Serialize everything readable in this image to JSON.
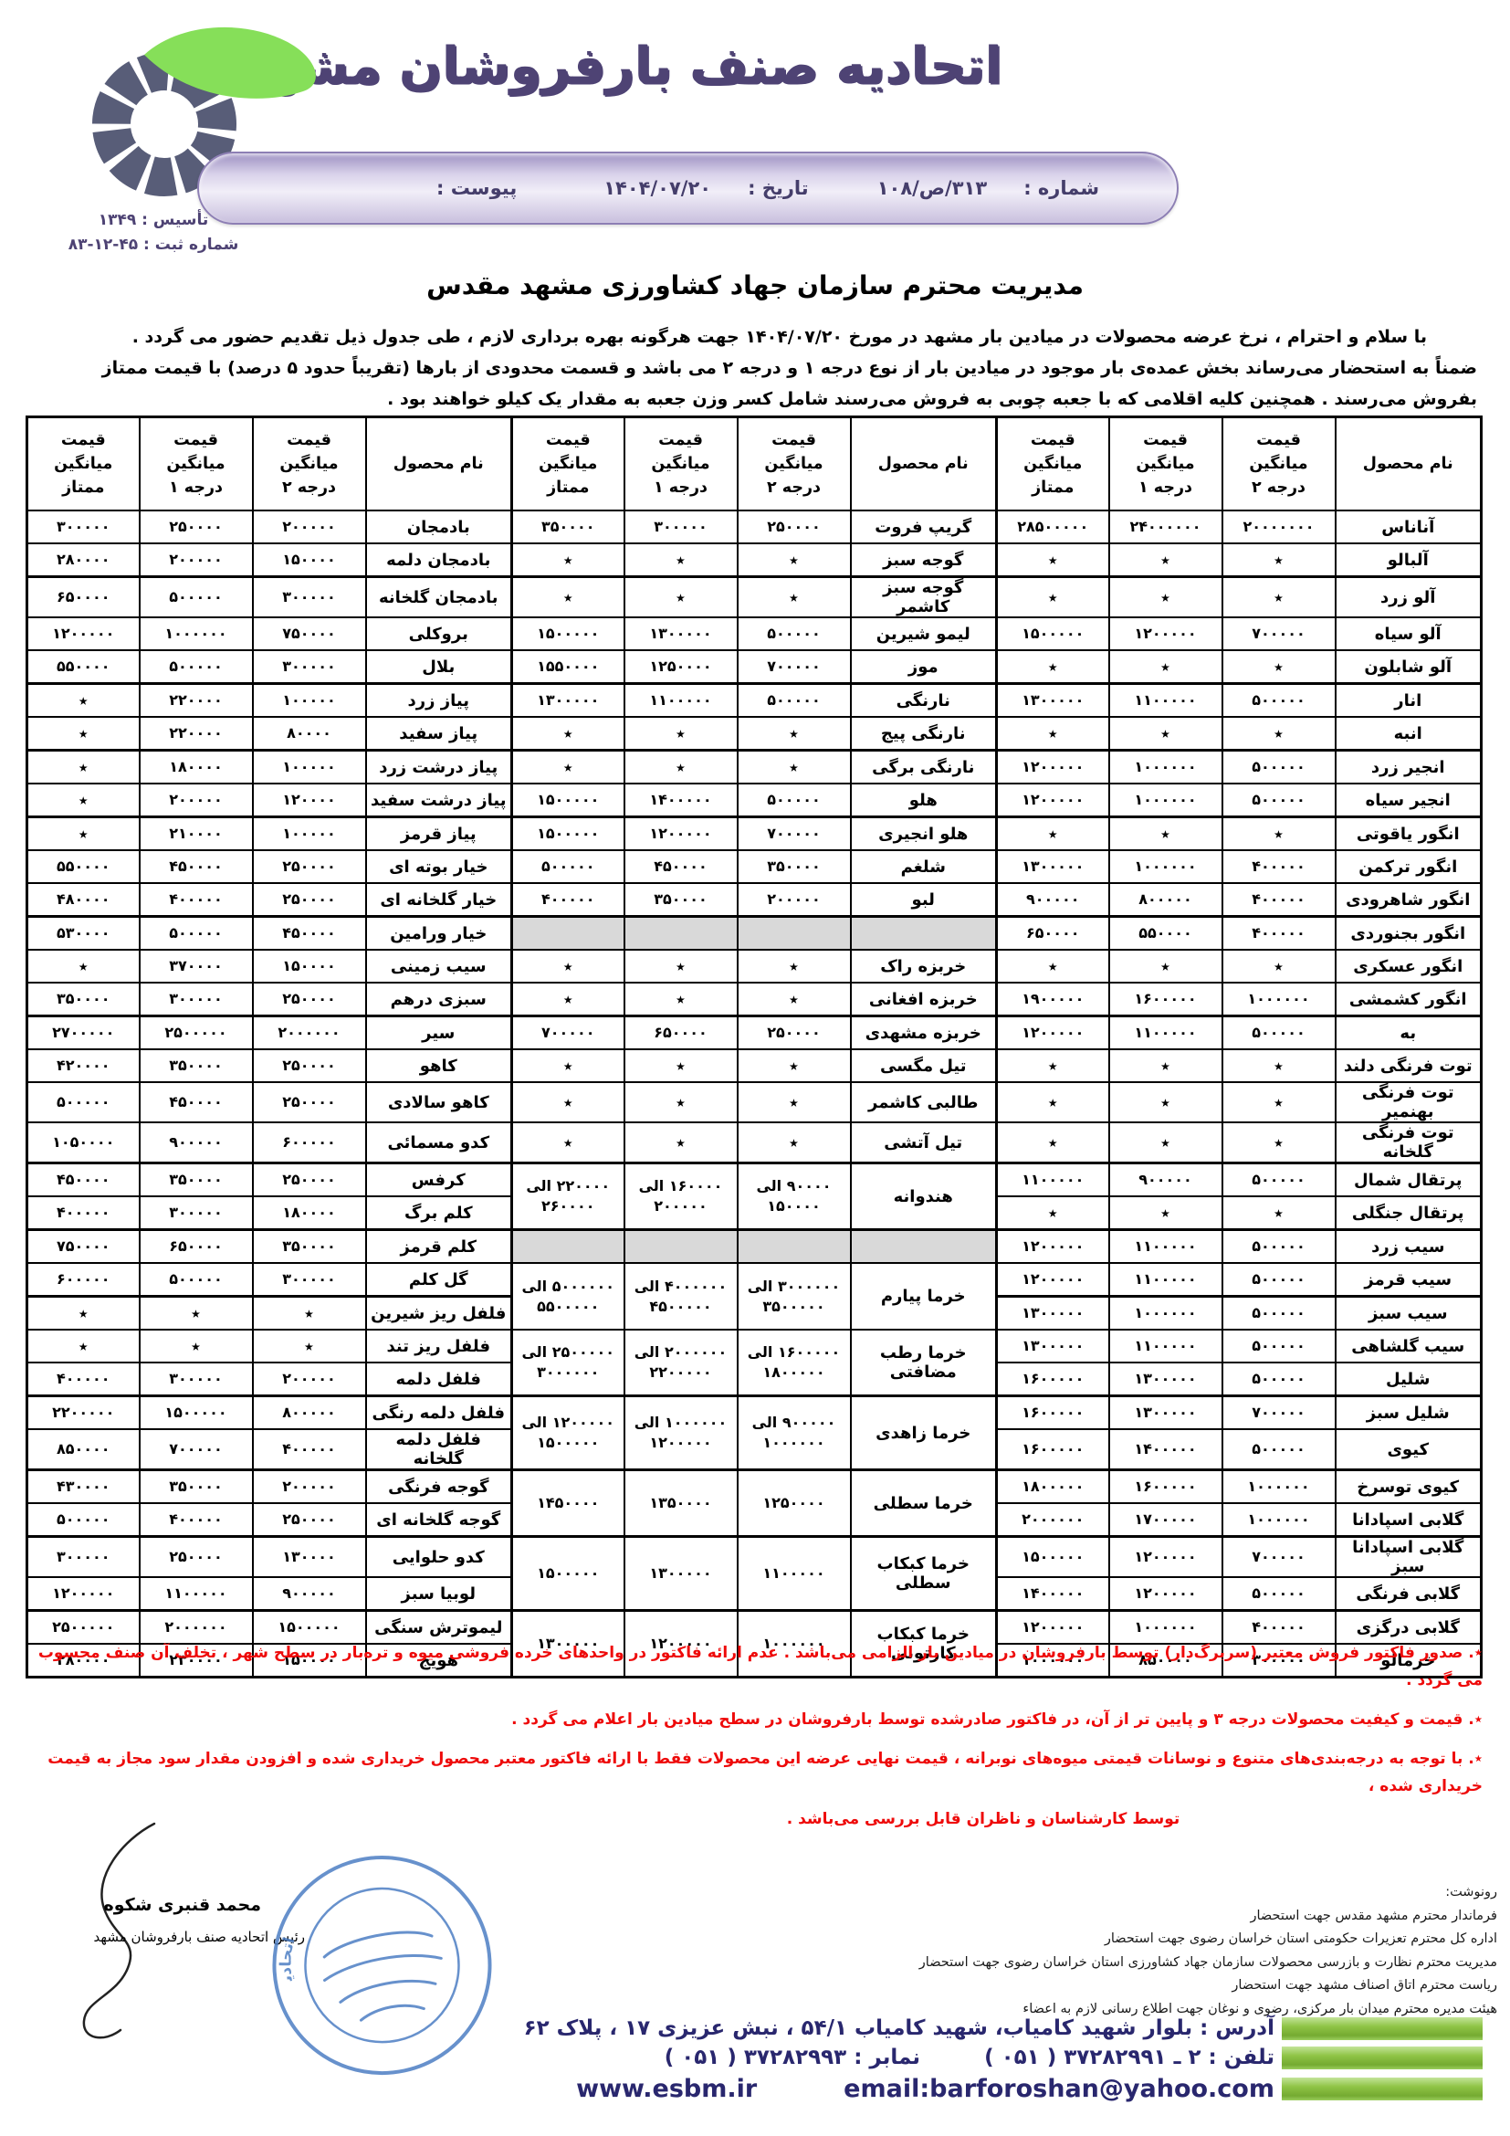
{
  "letterhead": {
    "union_title": "اتحادیه صنف بارفروشان مشهد",
    "established": "تأسیس : ۱۳۴۹",
    "registration": "شماره ثبت : ۴۵-۱۲-۸۳",
    "logo_icon": "segmented-fruit-with-green-leaf",
    "number_label": "شماره :",
    "number_value": "۳۱۳/ص/۱۰۸",
    "date_label": "تاریخ :",
    "date_value": "۱۴۰۴/۰۷/۲۰",
    "attachment_label": "پیوست :",
    "attachment_value": ""
  },
  "letter": {
    "recipient": "مدیریت محترم سازمان جهاد کشاورزی مشهد مقدس",
    "body_line1": "با سلام و احترام ، نرخ عرضه محصولات در میادین بار مشهد در مورخ  ۱۴۰۴/۰۷/۲۰ جهت هرگونه بهره برداری لازم ، طی جدول ذیل تقدیم حضور می گردد .",
    "body_line2": "ضمناً به استحضار می‌رساند بخش عمده‌ی بار موجود در میادین بار از نوع درجه ۱ و درجه ۲ می باشد و قسمت محدودی از بارها  (تقریباً حدود ۵ درصد) با قیمت ممتاز",
    "body_line3": "بفروش می‌رسند . همچنین کلیه اقلامی که با جعبه چوبی به فروش می‌رسند شامل کسر وزن جعبه به مقدار یک کیلو خواهند بود ."
  },
  "table": {
    "no_price_symbol": "٭",
    "column_headers": {
      "product": "نام محصول",
      "line1": "قیمت",
      "line2": "میانگین",
      "grade2": "درجه ۲",
      "grade1": "درجه ۱",
      "premium": "ممتاز"
    },
    "right_group_rows": [
      [
        "آناناس",
        "۲۰۰۰۰۰۰۰",
        "۲۴۰۰۰۰۰۰",
        "۲۸۵۰۰۰۰۰"
      ],
      [
        "آلبالو",
        "٭",
        "٭",
        "٭"
      ],
      [
        "آلو زرد",
        "٭",
        "٭",
        "٭"
      ],
      [
        "آلو سیاه",
        "۷۰۰۰۰۰",
        "۱۲۰۰۰۰۰",
        "۱۵۰۰۰۰۰"
      ],
      [
        "آلو شابلون",
        "٭",
        "٭",
        "٭"
      ],
      [
        "انار",
        "۵۰۰۰۰۰",
        "۱۱۰۰۰۰۰",
        "۱۳۰۰۰۰۰"
      ],
      [
        "انبه",
        "٭",
        "٭",
        "٭"
      ],
      [
        "انجیر زرد",
        "۵۰۰۰۰۰",
        "۱۰۰۰۰۰۰",
        "۱۲۰۰۰۰۰"
      ],
      [
        "انجیر سیاه",
        "۵۰۰۰۰۰",
        "۱۰۰۰۰۰۰",
        "۱۲۰۰۰۰۰"
      ],
      [
        "انگور یاقوتی",
        "٭",
        "٭",
        "٭"
      ],
      [
        "انگور ترکمن",
        "۴۰۰۰۰۰",
        "۱۰۰۰۰۰۰",
        "۱۳۰۰۰۰۰"
      ],
      [
        "انگور شاهرودی",
        "۴۰۰۰۰۰",
        "۸۰۰۰۰۰",
        "۹۰۰۰۰۰"
      ],
      [
        "انگور بجنوردی",
        "۴۰۰۰۰۰",
        "۵۵۰۰۰۰",
        "۶۵۰۰۰۰"
      ],
      [
        "انگور عسکری",
        "٭",
        "٭",
        "٭"
      ],
      [
        "انگور کشمشی",
        "۱۰۰۰۰۰۰",
        "۱۶۰۰۰۰۰",
        "۱۹۰۰۰۰۰"
      ],
      [
        "به",
        "۵۰۰۰۰۰",
        "۱۱۰۰۰۰۰",
        "۱۲۰۰۰۰۰"
      ],
      [
        "توت فرنگی دلند",
        "٭",
        "٭",
        "٭"
      ],
      [
        "توت فرنگی بهنمیر",
        "٭",
        "٭",
        "٭"
      ],
      [
        "توت فرنگی گلخانه",
        "٭",
        "٭",
        "٭"
      ],
      [
        "پرتقال شمال",
        "۵۰۰۰۰۰",
        "۹۰۰۰۰۰",
        "۱۱۰۰۰۰۰"
      ],
      [
        "پرتقال جنگلی",
        "٭",
        "٭",
        "٭"
      ],
      [
        "سیب زرد",
        "۵۰۰۰۰۰",
        "۱۱۰۰۰۰۰",
        "۱۲۰۰۰۰۰"
      ],
      [
        "سیب قرمز",
        "۵۰۰۰۰۰",
        "۱۱۰۰۰۰۰",
        "۱۲۰۰۰۰۰"
      ],
      [
        "سیب سبز",
        "۵۰۰۰۰۰",
        "۱۰۰۰۰۰۰",
        "۱۳۰۰۰۰۰"
      ],
      [
        "سیب گلشاهی",
        "۵۰۰۰۰۰",
        "۱۱۰۰۰۰۰",
        "۱۳۰۰۰۰۰"
      ],
      [
        "شلیل",
        "۵۰۰۰۰۰",
        "۱۳۰۰۰۰۰",
        "۱۶۰۰۰۰۰"
      ],
      [
        "شلیل سبز",
        "۷۰۰۰۰۰",
        "۱۳۰۰۰۰۰",
        "۱۶۰۰۰۰۰"
      ],
      [
        "کیوی",
        "۵۰۰۰۰۰",
        "۱۴۰۰۰۰۰",
        "۱۶۰۰۰۰۰"
      ],
      [
        "کیوی توسرخ",
        "۱۰۰۰۰۰۰",
        "۱۶۰۰۰۰۰",
        "۱۸۰۰۰۰۰"
      ],
      [
        "گلابی اسپادانا",
        "۱۰۰۰۰۰۰",
        "۱۷۰۰۰۰۰",
        "۲۰۰۰۰۰۰"
      ],
      [
        "گلابی اسپادانا سبز",
        "۷۰۰۰۰۰",
        "۱۲۰۰۰۰۰",
        "۱۵۰۰۰۰۰"
      ],
      [
        "گلابی فرنگی",
        "۵۰۰۰۰۰",
        "۱۲۰۰۰۰۰",
        "۱۴۰۰۰۰۰"
      ],
      [
        "گلابی درگزی",
        "۴۰۰۰۰۰",
        "۱۰۰۰۰۰۰",
        "۱۲۰۰۰۰۰"
      ],
      [
        "خرمالو",
        "۳۰۰۰۰۰",
        "۸۵۰۰۰۰",
        "۱۰۰۰۰۰۰"
      ]
    ],
    "middle_group_rows": [
      {
        "type": "row",
        "span": 1,
        "name": "گریپ فروت",
        "grade2": "۲۵۰۰۰۰",
        "grade1": "۳۰۰۰۰۰",
        "premium": "۳۵۰۰۰۰"
      },
      {
        "type": "row",
        "span": 1,
        "name": "گوجه سبز",
        "grade2": "٭",
        "grade1": "٭",
        "premium": "٭"
      },
      {
        "type": "row",
        "span": 1,
        "name": "گوجه سبز کاشمر",
        "grade2": "٭",
        "grade1": "٭",
        "premium": "٭"
      },
      {
        "type": "row",
        "span": 1,
        "name": "لیمو شیرین",
        "grade2": "۵۰۰۰۰۰",
        "grade1": "۱۳۰۰۰۰۰",
        "premium": "۱۵۰۰۰۰۰"
      },
      {
        "type": "row",
        "span": 1,
        "name": "موز",
        "grade2": "۷۰۰۰۰۰",
        "grade1": "۱۲۵۰۰۰۰",
        "premium": "۱۵۵۰۰۰۰"
      },
      {
        "type": "row",
        "span": 1,
        "name": "نارنگی",
        "grade2": "۵۰۰۰۰۰",
        "grade1": "۱۱۰۰۰۰۰",
        "premium": "۱۳۰۰۰۰۰"
      },
      {
        "type": "row",
        "span": 1,
        "name": "نارنگی پیج",
        "grade2": "٭",
        "grade1": "٭",
        "premium": "٭"
      },
      {
        "type": "row",
        "span": 1,
        "name": "نارنگی برگی",
        "grade2": "٭",
        "grade1": "٭",
        "premium": "٭"
      },
      {
        "type": "row",
        "span": 1,
        "name": "هلو",
        "grade2": "۵۰۰۰۰۰",
        "grade1": "۱۴۰۰۰۰۰",
        "premium": "۱۵۰۰۰۰۰"
      },
      {
        "type": "row",
        "span": 1,
        "name": "هلو انجیری",
        "grade2": "۷۰۰۰۰۰",
        "grade1": "۱۲۰۰۰۰۰",
        "premium": "۱۵۰۰۰۰۰"
      },
      {
        "type": "row",
        "span": 1,
        "name": "شلغم",
        "grade2": "۳۵۰۰۰۰",
        "grade1": "۴۵۰۰۰۰",
        "premium": "۵۰۰۰۰۰"
      },
      {
        "type": "row",
        "span": 1,
        "name": "لبو",
        "grade2": "۲۰۰۰۰۰",
        "grade1": "۳۵۰۰۰۰",
        "premium": "۴۰۰۰۰۰"
      },
      {
        "type": "gray",
        "span": 1,
        "name": "",
        "grade2": "",
        "grade1": "",
        "premium": ""
      },
      {
        "type": "row",
        "span": 1,
        "name": "خربزه راک",
        "grade2": "٭",
        "grade1": "٭",
        "premium": "٭"
      },
      {
        "type": "row",
        "span": 1,
        "name": "خربزه افغانی",
        "grade2": "٭",
        "grade1": "٭",
        "premium": "٭"
      },
      {
        "type": "row",
        "span": 1,
        "name": "خربزه مشهدی",
        "grade2": "۲۵۰۰۰۰",
        "grade1": "۶۵۰۰۰۰",
        "premium": "۷۰۰۰۰۰"
      },
      {
        "type": "row",
        "span": 1,
        "name": "تیل مگسی",
        "grade2": "٭",
        "grade1": "٭",
        "premium": "٭"
      },
      {
        "type": "row",
        "span": 1,
        "name": "طالبی کاشمر",
        "grade2": "٭",
        "grade1": "٭",
        "premium": "٭"
      },
      {
        "type": "row",
        "span": 1,
        "name": "تیل آتشی",
        "grade2": "٭",
        "grade1": "٭",
        "premium": "٭"
      },
      {
        "type": "row",
        "span": 2,
        "name": "هندوانه",
        "grade2": "۹۰۰۰۰ الی ۱۵۰۰۰۰",
        "grade1": "۱۶۰۰۰۰ الی ۲۰۰۰۰۰",
        "premium": "۲۲۰۰۰۰ الی ۲۶۰۰۰۰"
      },
      {
        "type": "gray",
        "span": 1,
        "name": "",
        "grade2": "",
        "grade1": "",
        "premium": ""
      },
      {
        "type": "row",
        "span": 2,
        "name": "خرما پیارم",
        "grade2": "۳۰۰۰۰۰۰ الی ۳۵۰۰۰۰۰",
        "grade1": "۴۰۰۰۰۰۰ الی ۴۵۰۰۰۰۰",
        "premium": "۵۰۰۰۰۰۰ الی ۵۵۰۰۰۰۰"
      },
      {
        "type": "row",
        "span": 2,
        "name": "خرما رطب مضافتی",
        "grade2": "۱۶۰۰۰۰۰ الی ۱۸۰۰۰۰۰",
        "grade1": "۲۰۰۰۰۰۰ الی ۲۲۰۰۰۰۰",
        "premium": "۲۵۰۰۰۰۰ الی ۳۰۰۰۰۰۰"
      },
      {
        "type": "row",
        "span": 2,
        "name": "خرما زاهدی",
        "grade2": "۹۰۰۰۰۰ الی ۱۰۰۰۰۰۰",
        "grade1": "۱۰۰۰۰۰۰ الی ۱۲۰۰۰۰۰",
        "premium": "۱۲۰۰۰۰۰ الی ۱۵۰۰۰۰۰"
      },
      {
        "type": "row",
        "span": 2,
        "name": "خرما سطلی",
        "grade2": "۱۲۵۰۰۰۰",
        "grade1": "۱۳۵۰۰۰۰",
        "premium": "۱۴۵۰۰۰۰"
      },
      {
        "type": "row",
        "span": 2,
        "name": "خرما کبکاب سطلی",
        "grade2": "۱۱۰۰۰۰۰",
        "grade1": "۱۳۰۰۰۰۰",
        "premium": "۱۵۰۰۰۰۰"
      },
      {
        "type": "row",
        "span": 2,
        "name": "خرما کبکاب کارتونی",
        "grade2": "۱۰۰۰۰۰۰",
        "grade1": "۱۲۰۰۰۰۰",
        "premium": "۱۳۰۰۰۰۰"
      }
    ],
    "left_group_rows": [
      [
        "بادمجان",
        "۲۰۰۰۰۰",
        "۲۵۰۰۰۰",
        "۳۰۰۰۰۰"
      ],
      [
        "بادمجان دلمه",
        "۱۵۰۰۰۰",
        "۲۰۰۰۰۰",
        "۲۸۰۰۰۰"
      ],
      [
        "بادمجان گلخانه",
        "۳۰۰۰۰۰",
        "۵۰۰۰۰۰",
        "۶۵۰۰۰۰"
      ],
      [
        "بروکلی",
        "۷۵۰۰۰۰",
        "۱۰۰۰۰۰۰",
        "۱۲۰۰۰۰۰"
      ],
      [
        "بلال",
        "۳۰۰۰۰۰",
        "۵۰۰۰۰۰",
        "۵۵۰۰۰۰"
      ],
      [
        "پیاز زرد",
        "۱۰۰۰۰۰",
        "۲۲۰۰۰۰",
        "٭"
      ],
      [
        "پیاز سفید",
        "۸۰۰۰۰",
        "۲۲۰۰۰۰",
        "٭"
      ],
      [
        "پیاز درشت زرد",
        "۱۰۰۰۰۰",
        "۱۸۰۰۰۰",
        "٭"
      ],
      [
        "پیاز درشت سفید",
        "۱۲۰۰۰۰",
        "۲۰۰۰۰۰",
        "٭"
      ],
      [
        "پیاز قرمز",
        "۱۰۰۰۰۰",
        "۲۱۰۰۰۰",
        "٭"
      ],
      [
        "خیار بوته ای",
        "۲۵۰۰۰۰",
        "۴۵۰۰۰۰",
        "۵۵۰۰۰۰"
      ],
      [
        "خیار گلخانه ای",
        "۲۵۰۰۰۰",
        "۴۰۰۰۰۰",
        "۴۸۰۰۰۰"
      ],
      [
        "خیار ورامین",
        "۴۵۰۰۰۰",
        "۵۰۰۰۰۰",
        "۵۳۰۰۰۰"
      ],
      [
        "سیب زمینی",
        "۱۵۰۰۰۰",
        "۳۷۰۰۰۰",
        "٭"
      ],
      [
        "سبزی درهم",
        "۲۵۰۰۰۰",
        "۳۰۰۰۰۰",
        "۳۵۰۰۰۰"
      ],
      [
        "سیر",
        "۲۰۰۰۰۰۰",
        "۲۵۰۰۰۰۰",
        "۲۷۰۰۰۰۰"
      ],
      [
        "کاهو",
        "۲۵۰۰۰۰",
        "۳۵۰۰۰۰",
        "۴۲۰۰۰۰"
      ],
      [
        "کاهو سالادی",
        "۲۵۰۰۰۰",
        "۴۵۰۰۰۰",
        "۵۰۰۰۰۰"
      ],
      [
        "کدو مسمائی",
        "۶۰۰۰۰۰",
        "۹۰۰۰۰۰",
        "۱۰۵۰۰۰۰"
      ],
      [
        "کرفس",
        "۲۵۰۰۰۰",
        "۳۵۰۰۰۰",
        "۴۵۰۰۰۰"
      ],
      [
        "کلم برگ",
        "۱۸۰۰۰۰",
        "۳۰۰۰۰۰",
        "۴۰۰۰۰۰"
      ],
      [
        "کلم قرمز",
        "۳۵۰۰۰۰",
        "۶۵۰۰۰۰",
        "۷۵۰۰۰۰"
      ],
      [
        "گل کلم",
        "۳۰۰۰۰۰",
        "۵۰۰۰۰۰",
        "۶۰۰۰۰۰"
      ],
      [
        "فلفل ریز شیرین",
        "٭",
        "٭",
        "٭"
      ],
      [
        "فلفل ریز تند",
        "٭",
        "٭",
        "٭"
      ],
      [
        "فلفل دلمه",
        "۲۰۰۰۰۰",
        "۳۰۰۰۰۰",
        "۴۰۰۰۰۰"
      ],
      [
        "فلفل دلمه رنگی",
        "۸۰۰۰۰۰",
        "۱۵۰۰۰۰۰",
        "۲۲۰۰۰۰۰"
      ],
      [
        "فلفل دلمه گلخانه",
        "۴۰۰۰۰۰",
        "۷۰۰۰۰۰",
        "۸۵۰۰۰۰"
      ],
      [
        "گوجه فرنگی",
        "۲۰۰۰۰۰",
        "۳۵۰۰۰۰",
        "۴۳۰۰۰۰"
      ],
      [
        "گوجه گلخانه ای",
        "۲۵۰۰۰۰",
        "۴۰۰۰۰۰",
        "۵۰۰۰۰۰"
      ],
      [
        "کدو حلوایی",
        "۱۳۰۰۰۰",
        "۲۵۰۰۰۰",
        "۳۰۰۰۰۰"
      ],
      [
        "لوبیا سبز",
        "۹۰۰۰۰۰",
        "۱۱۰۰۰۰۰",
        "۱۲۰۰۰۰۰"
      ],
      [
        "لیموترش سنگی",
        "۱۵۰۰۰۰۰",
        "۲۰۰۰۰۰۰",
        "۲۵۰۰۰۰۰"
      ],
      [
        "هویج",
        "۱۵۰۰۰۰",
        "۲۳۰۰۰۰",
        "۲۸۰۰۰۰"
      ]
    ]
  },
  "notes": {
    "lines": [
      "٭. صدور فاکتور فروش معتبر (سربرگ‌دار) توسط بارفروشان در میادین بار الزامی می‌باشد . عدم ارائه فاکتور در واحدهای خرده فروشی میوه و تره‌بار در سطح شهر ، تخلف آن صنف محسوب می گردد .",
      "٭. قیمت و کیفیت محصولات درجه ۳ و پایین تر از آن، در فاکتور صادرشده توسط بارفروشان در سطح میادین بار اعلام می گردد .",
      "٭. با توجه به درجه‌بندی‌های متنوع و نوسانات قیمتی میوه‌های نوبرانه ، قیمت نهایی عرضه این محصولات فقط با ارائه فاکتور معتبر محصول خریداری شده و افزودن مقدار سود مجاز  به قیمت خریداری شده ،",
      "توسط کارشناسان و ناظران قابل بررسی می‌باشد ."
    ]
  },
  "signature": {
    "name": "محمد قنبری شکوه",
    "title": "رئیس اتحادیه صنف بارفروشان مشهد",
    "stamp_icon": "round-blue-union-stamp"
  },
  "cc": {
    "label": "رونوشت:",
    "items": [
      "فرماندار محترم مشهد مقدس جهت استحضار",
      "اداره کل محترم تعزیرات حکومتی استان خراسان رضوی جهت استحضار",
      "مدیریت محترم نظارت و بازرسی محصولات سازمان جهاد کشاورزی استان خراسان رضوی جهت استحضار",
      "ریاست محترم اتاق اصناف مشهد جهت استحضار",
      "هیئت مدیره محترم میدان بار مرکزی، رضوی و نوغان جهت اطلاع رسانی لازم به اعضاء"
    ]
  },
  "contact": {
    "address": "آدرس : بلوار شهید کامیاب، شهید کامیاب ۵۴/۱ ، نبش عزیزی ۱۷ ، پلاک ۶۲",
    "phone": "تلفن : ۲ ـ ۳۷۲۸۲۹۹۱ ( ۰۵۱ )",
    "fax": "نمابر : ۳۷۲۸۲۹۹۳ ( ۰۵۱ )",
    "website": "www.esbm.ir",
    "email": "email:barforoshan@yahoo.com"
  },
  "colors": {
    "title_purple": "#4e4374",
    "pill_lavender": "#d9d2ea",
    "note_red": "#ee0a0a",
    "contact_navy": "#29276e",
    "highlight_green": "#8fc446",
    "gray_cell": "#d9d9d9",
    "leaf_green": "#86df59",
    "logo_slate": "#585d78",
    "stamp_blue": "#4d7ec4"
  }
}
